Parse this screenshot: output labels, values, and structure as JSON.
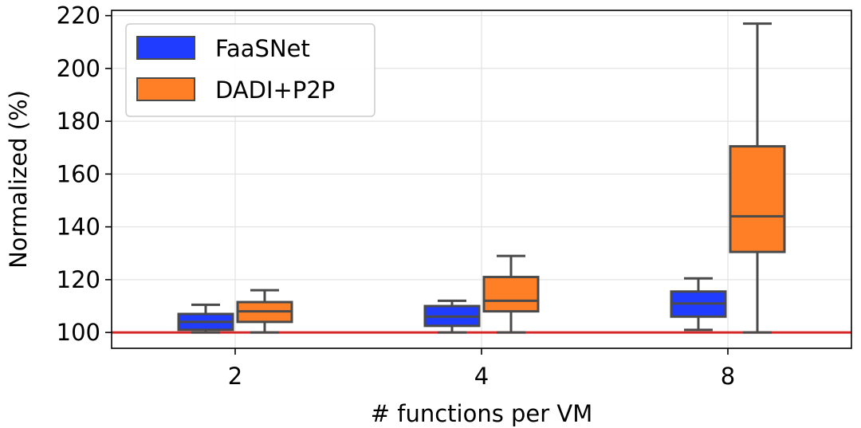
{
  "chart_data": {
    "type": "box",
    "title": "",
    "xlabel": "# functions per VM",
    "ylabel": "Normalized (%)",
    "ylim": [
      94,
      222
    ],
    "yticks": [
      100,
      120,
      140,
      160,
      180,
      200,
      220
    ],
    "categories": [
      "2",
      "4",
      "8"
    ],
    "grid": true,
    "legend_position": "top-left",
    "reference_line": {
      "value": 100,
      "color": "#d62728"
    },
    "series": [
      {
        "name": "FaaSNet",
        "color": "#1f3cff",
        "boxes": [
          {
            "whisker_low": 100,
            "q1": 101,
            "median": 104,
            "q3": 107,
            "whisker_high": 110.5
          },
          {
            "whisker_low": 100,
            "q1": 102.5,
            "median": 106,
            "q3": 110,
            "whisker_high": 112
          },
          {
            "whisker_low": 101,
            "q1": 106,
            "median": 111,
            "q3": 115.5,
            "whisker_high": 120.5
          }
        ]
      },
      {
        "name": "DADI+P2P",
        "color": "#ff7f27",
        "boxes": [
          {
            "whisker_low": 100,
            "q1": 104,
            "median": 108,
            "q3": 111.5,
            "whisker_high": 116
          },
          {
            "whisker_low": 100,
            "q1": 108,
            "median": 112,
            "q3": 121,
            "whisker_high": 129
          },
          {
            "whisker_low": 100,
            "q1": 130.5,
            "median": 144,
            "q3": 170.5,
            "whisker_high": 217
          }
        ]
      }
    ]
  }
}
